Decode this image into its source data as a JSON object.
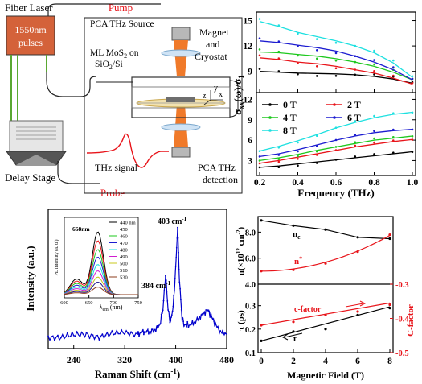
{
  "setup": {
    "fiber_laser": "Fiber Laser",
    "laser_line1": "1550nm",
    "laser_line2": "pulses",
    "pump": "Pump",
    "probe": "Probe",
    "delay_stage": "Delay Stage",
    "pca_source": "PCA THz Source",
    "sample_line1": "ML MoS",
    "sample_sub": "2",
    "sample_line1b": " on",
    "sample_line2": "SiO",
    "sample_sub2": "2",
    "sample_line2b": "/Si",
    "magnet1": "Magnet",
    "magnet2": "and",
    "magnet3": "Cryostat",
    "thz_signal": "THz signal",
    "pca_det1": "PCA THz",
    "pca_det2": "detection",
    "axis_y": "y",
    "axis_x": "x",
    "axis_z": "z",
    "colors": {
      "pump": "#e8141a",
      "probe": "#e8141a",
      "laser_box": "#d4623a",
      "fiber": "#5aa832",
      "cryostat": "#f07a2a"
    }
  },
  "chart_data": [
    {
      "id": "conductivity",
      "type": "line",
      "xlabel": "Frequency (THz)",
      "ylabel": "σxx(ω)/σ1",
      "xlim": [
        0.2,
        1.0
      ],
      "xticks": [
        "0.2",
        "0.4",
        "0.6",
        "0.8",
        "1.0"
      ],
      "yticks_top": [
        "9",
        "12",
        "15"
      ],
      "yticks_bottom": [
        "3",
        "6",
        "9",
        "12"
      ],
      "series": [
        {
          "name": "0 T",
          "color": "#000000",
          "top": [
            [
              0.2,
              9.0
            ],
            [
              0.3,
              8.9
            ],
            [
              0.4,
              8.8
            ],
            [
              0.5,
              8.75
            ],
            [
              0.6,
              8.7
            ],
            [
              0.7,
              8.6
            ],
            [
              0.8,
              8.4
            ],
            [
              0.9,
              8.1
            ],
            [
              1.0,
              7.6
            ]
          ],
          "bottom": [
            [
              0.2,
              2.0
            ],
            [
              0.3,
              2.2
            ],
            [
              0.4,
              2.5
            ],
            [
              0.5,
              2.8
            ],
            [
              0.6,
              3.1
            ],
            [
              0.7,
              3.4
            ],
            [
              0.8,
              3.7
            ],
            [
              0.9,
              4.0
            ],
            [
              1.0,
              4.3
            ]
          ]
        },
        {
          "name": "2 T",
          "color": "#e8141a",
          "top": [
            [
              0.2,
              10.6
            ],
            [
              0.3,
              10.4
            ],
            [
              0.4,
              10.1
            ],
            [
              0.5,
              9.9
            ],
            [
              0.6,
              9.6
            ],
            [
              0.7,
              9.2
            ],
            [
              0.8,
              8.8
            ],
            [
              0.9,
              8.2
            ],
            [
              1.0,
              7.5
            ]
          ],
          "bottom": [
            [
              0.2,
              2.6
            ],
            [
              0.3,
              3.0
            ],
            [
              0.4,
              3.5
            ],
            [
              0.5,
              4.0
            ],
            [
              0.6,
              4.5
            ],
            [
              0.7,
              5.0
            ],
            [
              0.8,
              5.4
            ],
            [
              0.9,
              5.8
            ],
            [
              1.0,
              6.1
            ]
          ]
        },
        {
          "name": "4 T",
          "color": "#1ec81e",
          "top": [
            [
              0.2,
              11.3
            ],
            [
              0.3,
              11.2
            ],
            [
              0.4,
              11.0
            ],
            [
              0.5,
              10.8
            ],
            [
              0.6,
              10.5
            ],
            [
              0.7,
              10.1
            ],
            [
              0.8,
              9.6
            ],
            [
              0.9,
              8.9
            ],
            [
              1.0,
              8.0
            ]
          ],
          "bottom": [
            [
              0.2,
              3.0
            ],
            [
              0.3,
              3.4
            ],
            [
              0.4,
              3.9
            ],
            [
              0.5,
              4.5
            ],
            [
              0.6,
              5.0
            ],
            [
              0.7,
              5.5
            ],
            [
              0.8,
              6.0
            ],
            [
              0.9,
              6.3
            ],
            [
              1.0,
              6.6
            ]
          ]
        },
        {
          "name": "6 T",
          "color": "#1c1cd0",
          "top": [
            [
              0.2,
              12.6
            ],
            [
              0.3,
              12.4
            ],
            [
              0.4,
              12.1
            ],
            [
              0.5,
              11.8
            ],
            [
              0.6,
              11.4
            ],
            [
              0.7,
              10.8
            ],
            [
              0.8,
              10.1
            ],
            [
              0.9,
              9.2
            ],
            [
              1.0,
              8.0
            ]
          ],
          "bottom": [
            [
              0.2,
              3.6
            ],
            [
              0.3,
              4.0
            ],
            [
              0.4,
              4.6
            ],
            [
              0.5,
              5.3
            ],
            [
              0.6,
              6.0
            ],
            [
              0.7,
              6.6
            ],
            [
              0.8,
              7.1
            ],
            [
              0.9,
              7.4
            ],
            [
              1.0,
              7.6
            ]
          ]
        },
        {
          "name": "8 T",
          "color": "#1ee0e0",
          "top": [
            [
              0.2,
              14.9
            ],
            [
              0.3,
              14.3
            ],
            [
              0.4,
              13.6
            ],
            [
              0.5,
              13.1
            ],
            [
              0.6,
              12.6
            ],
            [
              0.7,
              12.0
            ],
            [
              0.8,
              11.2
            ],
            [
              0.9,
              10.0
            ],
            [
              1.0,
              8.3
            ]
          ],
          "bottom": [
            [
              0.2,
              4.4
            ],
            [
              0.3,
              5.1
            ],
            [
              0.4,
              5.9
            ],
            [
              0.5,
              6.8
            ],
            [
              0.6,
              7.8
            ],
            [
              0.7,
              8.6
            ],
            [
              0.8,
              9.3
            ],
            [
              0.9,
              9.8
            ],
            [
              1.0,
              10.1
            ]
          ]
        }
      ]
    },
    {
      "id": "raman",
      "type": "line",
      "xlabel": "Raman Shift (cm",
      "xlabel_sup": "-1",
      "xlabel_end": ")",
      "ylabel": "Intensity (a.u.)",
      "xlim": [
        200,
        480
      ],
      "xticks": [
        "240",
        "320",
        "400",
        "480"
      ],
      "peak1_label": "384 cm",
      "peak1_sup": "-1",
      "peak2_label": "403 cm",
      "peak2_sup": "-1",
      "color": "#0000cc",
      "x": [
        200,
        220,
        240,
        260,
        280,
        300,
        320,
        340,
        350,
        360,
        370,
        375,
        380,
        384,
        388,
        392,
        396,
        400,
        403,
        406,
        410,
        414,
        420,
        430,
        440,
        450,
        455,
        460,
        470,
        480
      ],
      "y": [
        0.08,
        0.07,
        0.09,
        0.1,
        0.08,
        0.1,
        0.11,
        0.1,
        0.12,
        0.12,
        0.14,
        0.18,
        0.3,
        0.6,
        0.3,
        0.2,
        0.32,
        0.65,
        0.98,
        0.55,
        0.22,
        0.18,
        0.17,
        0.2,
        0.25,
        0.3,
        0.26,
        0.2,
        0.12,
        0.1
      ]
    },
    {
      "id": "pl_inset",
      "type": "line",
      "xlabel": "λ",
      "xlabel_sub": "em",
      "xlabel_end": " (nm)",
      "ylabel": "PL Intensity (a. u.)",
      "peak_label": "668nm",
      "xlim": [
        600,
        750
      ],
      "xticks": [
        "600",
        "650",
        "700",
        "750"
      ],
      "series": [
        {
          "name": "440 nm",
          "color": "#000000",
          "amp": 1.0
        },
        {
          "name": "450",
          "color": "#e8141a",
          "amp": 0.86
        },
        {
          "name": "460",
          "color": "#1ec81e",
          "amp": 0.72
        },
        {
          "name": "470",
          "color": "#1c1cd0",
          "amp": 0.6
        },
        {
          "name": "480",
          "color": "#1ee0e0",
          "amp": 0.48
        },
        {
          "name": "490",
          "color": "#d01cd0",
          "amp": 0.38
        },
        {
          "name": "500",
          "color": "#c8c81e",
          "amp": 0.28
        },
        {
          "name": "510",
          "color": "#1e1e8c",
          "amp": 0.2
        },
        {
          "name": "530",
          "color": "#8c3c1e",
          "amp": 0.12
        }
      ]
    },
    {
      "id": "magnetic",
      "type": "line",
      "xlabel": "Magnetic Field (T)",
      "xticks": [
        "0",
        "2",
        "4",
        "6",
        "8"
      ],
      "top": {
        "ylabel": "n(×10",
        "ylabel_sup": "12",
        "ylabel_end": " cm",
        "ylabel_sup2": "-2",
        "ylabel_close": ")",
        "yticks": [
          "4.0",
          "6.0",
          "8.0"
        ],
        "ne_label": "n",
        "ne_sub": "e",
        "nstar_label": "n",
        "nstar_sup": "*",
        "ne": [
          [
            0,
            8.9
          ],
          [
            2,
            8.5
          ],
          [
            4,
            8.2
          ],
          [
            6,
            7.6
          ],
          [
            8,
            7.5
          ]
        ],
        "nstar": [
          [
            0,
            5.0
          ],
          [
            2,
            5.1
          ],
          [
            4,
            5.6
          ],
          [
            6,
            6.5
          ],
          [
            8,
            7.8
          ]
        ]
      },
      "bottom": {
        "ylabel": "τ (ps)",
        "yticks_left": [
          "0.1",
          "0.2",
          "0.3"
        ],
        "ylabel_right": "C-factor",
        "yticks_right": [
          "-0.3",
          "-0.4",
          "-0.5"
        ],
        "tau_label": "τ",
        "cfactor_label": "c-factor",
        "tau": [
          [
            0,
            0.15
          ],
          [
            2,
            0.19
          ],
          [
            4,
            0.2
          ],
          [
            6,
            0.26
          ],
          [
            8,
            0.29
          ]
        ],
        "cfactor": [
          [
            0,
            -0.42
          ],
          [
            2,
            -0.41
          ],
          [
            4,
            -0.39
          ],
          [
            6,
            -0.38
          ],
          [
            8,
            -0.36
          ]
        ]
      }
    }
  ]
}
